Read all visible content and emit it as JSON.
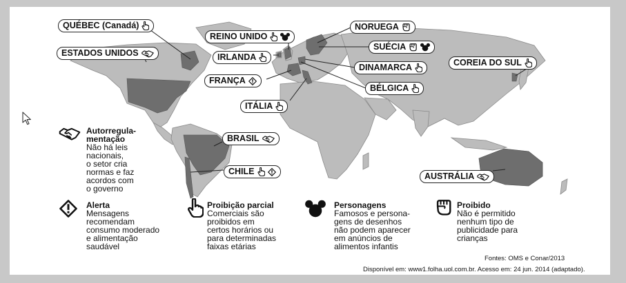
{
  "icons": {
    "autorregulamentacao": "handshake-icon",
    "alerta": "diamond-alert-icon",
    "proibicao_parcial": "pointing-hand-icon",
    "personagens": "mouse-ears-icon",
    "proibido": "raised-fist-icon"
  },
  "colors": {
    "land": "#bcbcbc",
    "highlight": "#6e6e6e",
    "ocean": "#ffffff",
    "frame": "#c8c8c8"
  },
  "countries": {
    "quebec": "QUÉBEC (Canadá)",
    "estados_unidos": "ESTADOS UNIDOS",
    "reino_unido": "REINO UNIDO",
    "irlanda": "IRLANDA",
    "franca": "FRANÇA",
    "italia": "ITÁLIA",
    "noruega": "NORUEGA",
    "suecia": "SUÉCIA",
    "dinamarca": "DINAMARCA",
    "belgica": "BÉLGICA",
    "coreia": "COREIA DO SUL",
    "brasil": "BRASIL",
    "chile": "CHILE",
    "australia": "AUSTRÁLIA"
  },
  "legend": {
    "autorregulamentacao": {
      "title_1": "Autorregula-",
      "title_2": "mentação",
      "desc": [
        "Não há leis",
        "nacionais,",
        "o setor cria",
        "normas e faz",
        "acordos com",
        "o governo"
      ]
    },
    "alerta": {
      "title": "Alerta",
      "desc": [
        "Mensagens",
        "recomendam",
        "consumo moderado",
        "e alimentação",
        "saudável"
      ]
    },
    "proibicao_parcial": {
      "title": "Proibição parcial",
      "desc": [
        "Comerciais são",
        "proibidos em",
        "certos horários ou",
        "para determinadas",
        "faixas etárias"
      ]
    },
    "personagens": {
      "title": "Personagens",
      "desc": [
        "Famosos e persona-",
        "gens de desenhos",
        "não podem aparecer",
        "em anúncios de",
        "alimentos infantis"
      ]
    },
    "proibido": {
      "title": "Proibido",
      "desc": [
        "Não é permitido",
        "nenhum tipo de",
        "publicidade para",
        "crianças"
      ]
    }
  },
  "source": {
    "fontes": "Fontes: OMS e Conar/2013",
    "disponivel": "Disponível em: www1.folha.uol.com.br. Acesso em: 24 jun. 2014 (adaptado)."
  }
}
